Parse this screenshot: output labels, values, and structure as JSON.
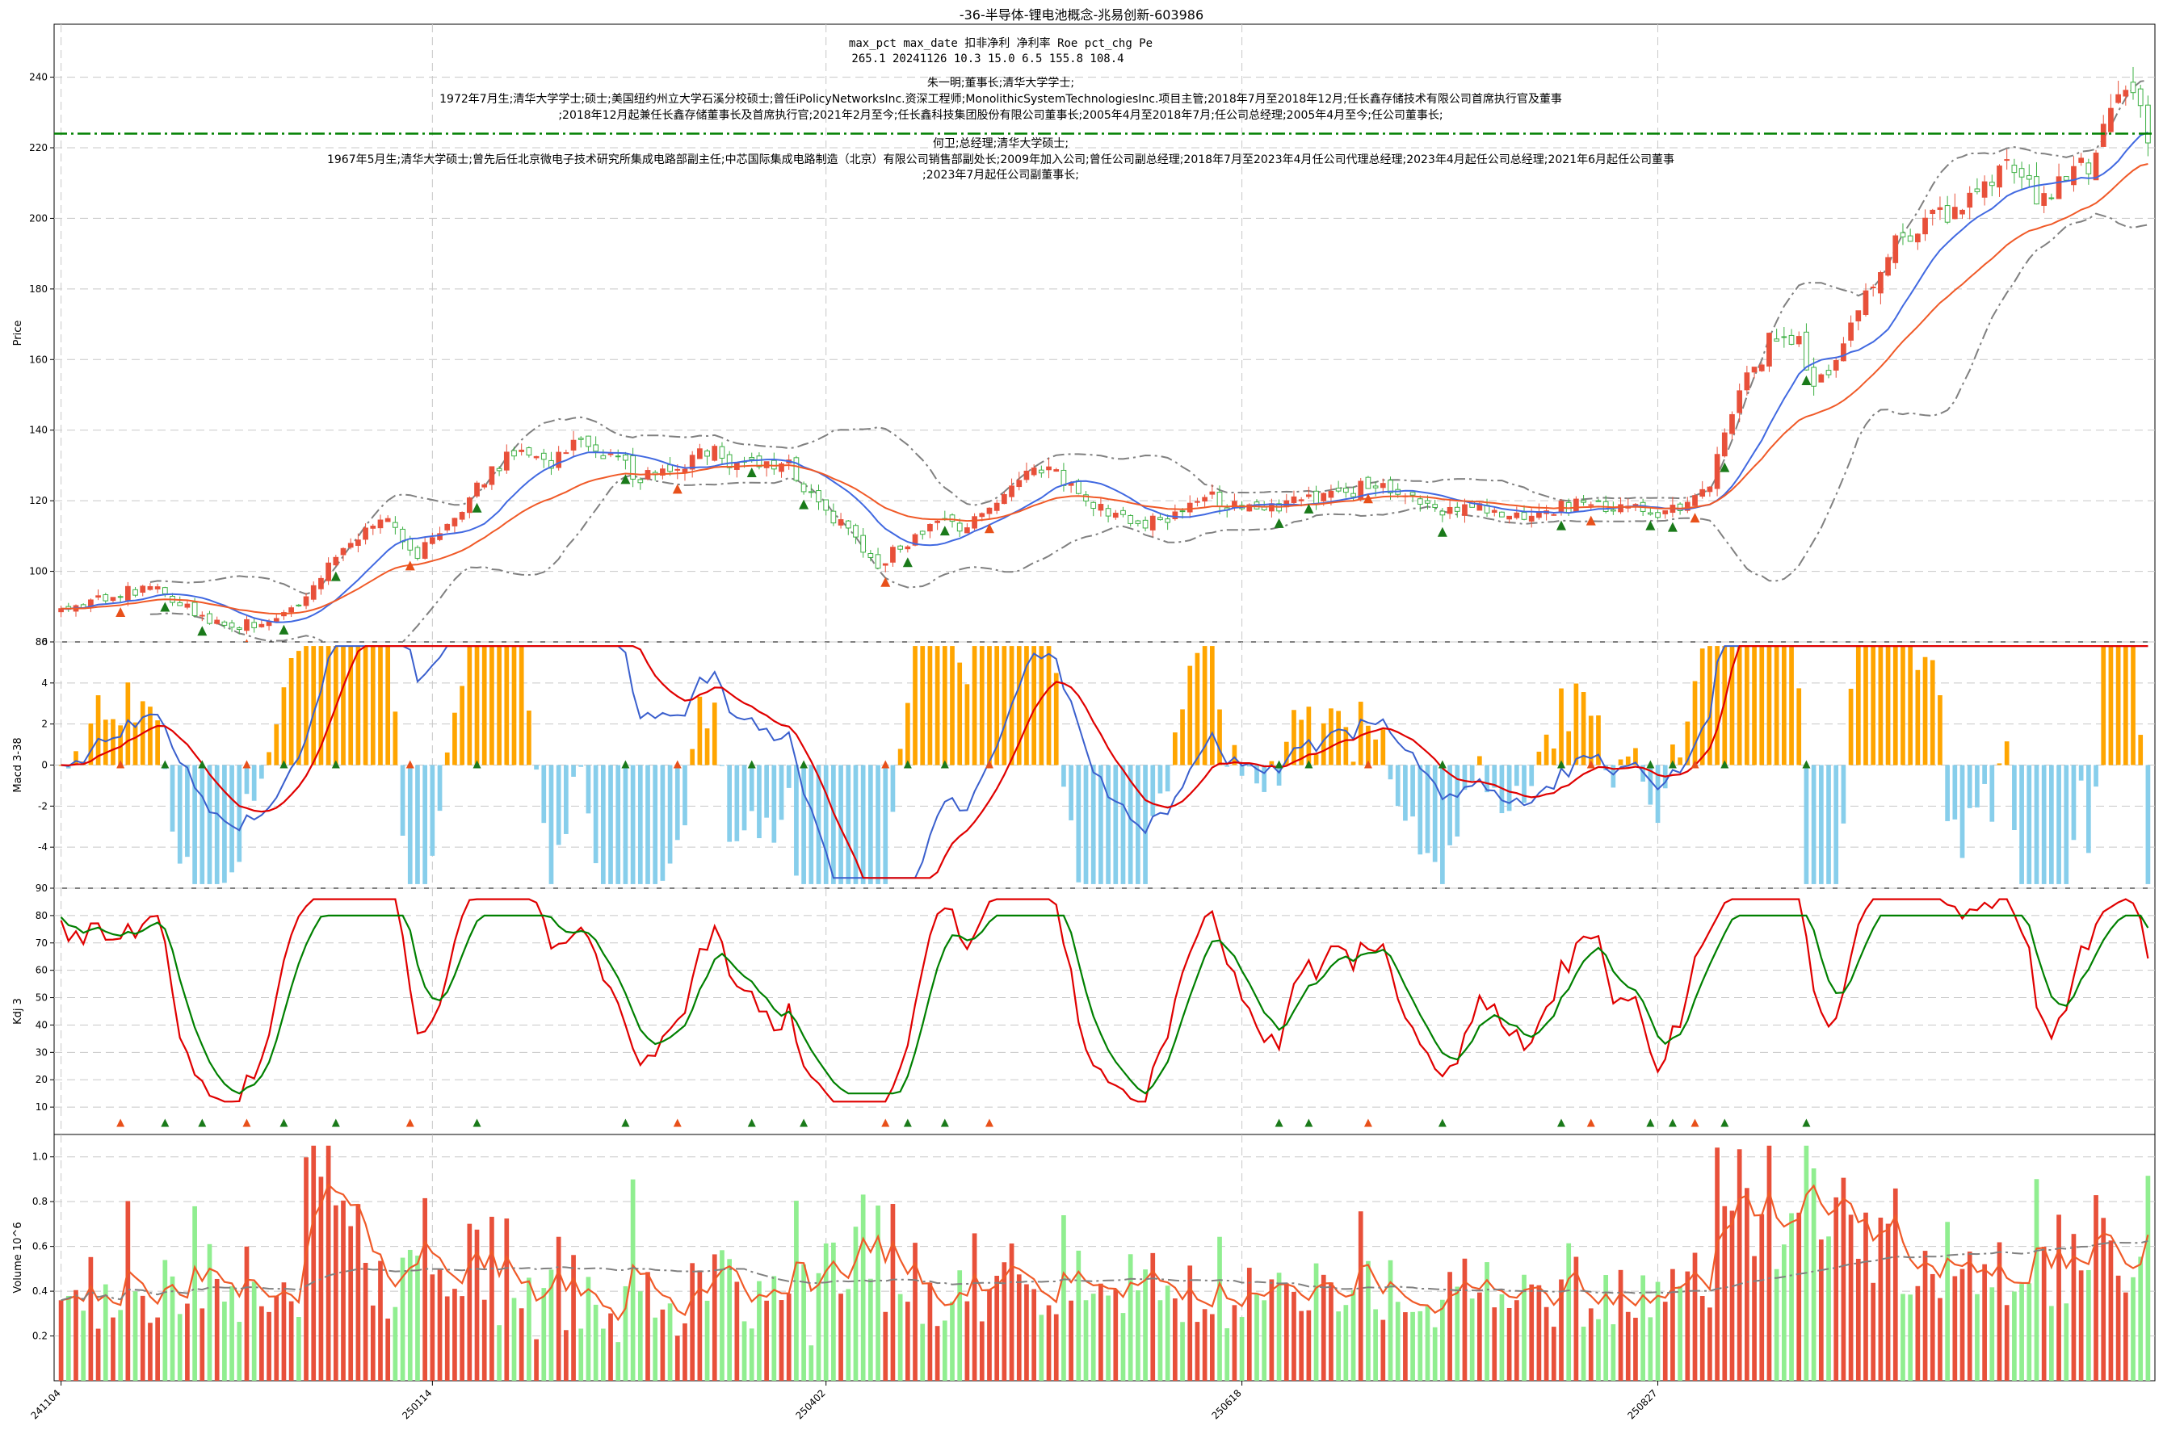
{
  "title": "-36-半导体-锂电池概念-兆易创新-603986",
  "info": {
    "stats_header": "max_pct  max_date  扣非净利  净利率  Roe  pct_chg  Pe",
    "stats_values": "265.1    20241126    10.3    15.0    6.5    155.8    108.4",
    "people": [
      "朱一明;董事长;清华大学学士;",
      "1972年7月生;清华大学学士;硕士;美国纽约州立大学石溪分校硕士;曾任iPolicyNetworksInc.资深工程师;MonolithicSystemTechnologiesInc.项目主管;2018年7月至2018年12月;任长鑫存储技术有限公司首席执行官及董事",
      ";2018年12月起兼任长鑫存储董事长及首席执行官;2021年2月至今;任长鑫科技集团股份有限公司董事长;2005年4月至2018年7月;任公司总经理;2005年4月至今;任公司董事长;",
      "何卫;总经理;清华大学硕士;",
      "1967年5月生;清华大学硕士;曾先后任北京微电子技术研究所集成电路部副主任;中芯国际集成电路制造（北京）有限公司销售部副处长;2009年加入公司;曾任公司副总经理;2018年7月至2023年4月任公司代理总经理;2023年4月起任公司总经理;2021年6月起任公司董事",
      ";2023年7月起任公司副董事长;"
    ]
  },
  "chart_data": [
    {
      "type": "candlestick",
      "ylabel": "Price",
      "ylim": [
        80,
        255
      ],
      "yticks": [
        "80",
        "100",
        "120",
        "140",
        "160",
        "180",
        "200",
        "220",
        "240"
      ],
      "hline": 224,
      "keypoints": [
        [
          0,
          89
        ],
        [
          5,
          92
        ],
        [
          12,
          96
        ],
        [
          18,
          88
        ],
        [
          22,
          85
        ],
        [
          28,
          85
        ],
        [
          30,
          87
        ],
        [
          34,
          95
        ],
        [
          38,
          108
        ],
        [
          44,
          115
        ],
        [
          48,
          105
        ],
        [
          52,
          112
        ],
        [
          58,
          129
        ],
        [
          62,
          135
        ],
        [
          66,
          130
        ],
        [
          70,
          138
        ],
        [
          74,
          132
        ],
        [
          78,
          127
        ],
        [
          82,
          130
        ],
        [
          84,
          128
        ],
        [
          86,
          136
        ],
        [
          90,
          131
        ],
        [
          94,
          130
        ],
        [
          98,
          130
        ],
        [
          102,
          118
        ],
        [
          106,
          112
        ],
        [
          110,
          102
        ],
        [
          114,
          108
        ],
        [
          118,
          114
        ],
        [
          122,
          112
        ],
        [
          126,
          120
        ],
        [
          130,
          128
        ],
        [
          134,
          128
        ],
        [
          138,
          118
        ],
        [
          142,
          116
        ],
        [
          146,
          114
        ],
        [
          150,
          116
        ],
        [
          154,
          122
        ],
        [
          158,
          118
        ],
        [
          162,
          117
        ],
        [
          166,
          121
        ],
        [
          170,
          120
        ],
        [
          174,
          123
        ],
        [
          178,
          125
        ],
        [
          182,
          122
        ],
        [
          186,
          118
        ],
        [
          190,
          118
        ],
        [
          194,
          116
        ],
        [
          198,
          117
        ],
        [
          202,
          118
        ],
        [
          206,
          120
        ],
        [
          210,
          118
        ],
        [
          214,
          116
        ],
        [
          218,
          119
        ],
        [
          222,
          125
        ],
        [
          226,
          150
        ],
        [
          230,
          165
        ],
        [
          234,
          165
        ],
        [
          236,
          152
        ],
        [
          238,
          156
        ],
        [
          242,
          175
        ],
        [
          246,
          190
        ],
        [
          250,
          198
        ],
        [
          254,
          202
        ],
        [
          258,
          208
        ],
        [
          262,
          215
        ],
        [
          266,
          205
        ],
        [
          270,
          210
        ],
        [
          274,
          218
        ],
        [
          278,
          238
        ],
        [
          281,
          223
        ]
      ],
      "date_labels": [
        "241104",
        "250114",
        "250402",
        "250618",
        "250827"
      ],
      "date_positions": [
        0,
        50,
        103,
        159,
        215
      ]
    },
    {
      "type": "bar",
      "ylabel": "Macd 3-38",
      "ylim": [
        -6,
        6
      ],
      "yticks": [
        "-4",
        "-2",
        "0",
        "2",
        "4",
        "6"
      ]
    },
    {
      "type": "line",
      "ylabel": "Kdj 3",
      "ylim": [
        0,
        90
      ],
      "yticks": [
        "10",
        "20",
        "30",
        "40",
        "50",
        "60",
        "70",
        "80",
        "90"
      ]
    },
    {
      "type": "bar",
      "ylabel": "Volume 10^6",
      "ylim": [
        0,
        1.1
      ],
      "yticks": [
        "0.2",
        "0.4",
        "0.6",
        "0.8",
        "1.0"
      ]
    }
  ],
  "colors": {
    "up": "#e8503a",
    "down": "#90ee90",
    "ma_fast": "#4169e1",
    "ma_slow": "#f05a28",
    "band": "#808080",
    "hline": "#008000",
    "macd_pos": "#ffa500",
    "macd_neg": "#87ceeb",
    "kdj_k": "#e00000",
    "kdj_d": "#008000"
  }
}
